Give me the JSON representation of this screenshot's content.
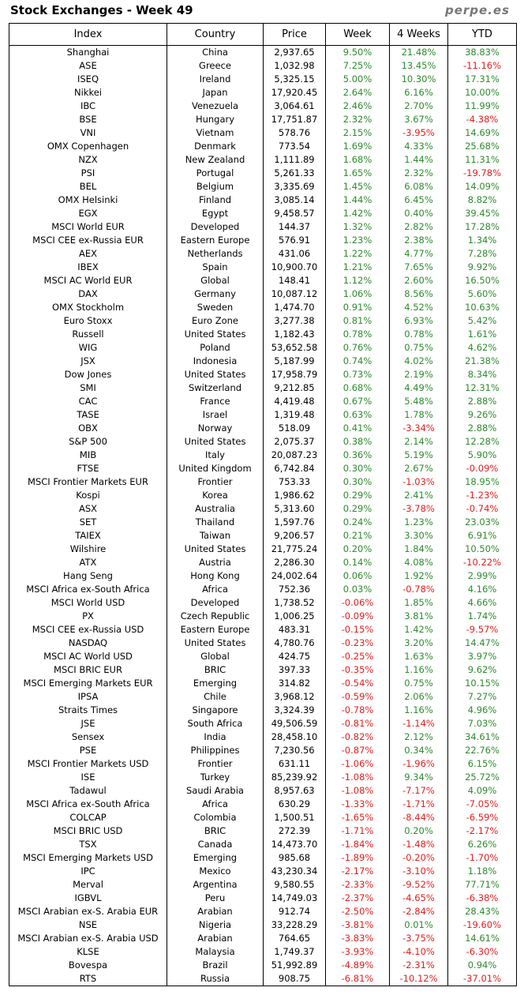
{
  "header": {
    "title": "Stock Exchanges - Week 49",
    "source": "perpe.es"
  },
  "table": {
    "columns": [
      "Index",
      "Country",
      "Price",
      "Week",
      "4 Weeks",
      "YTD"
    ],
    "rows": [
      [
        "Shanghai",
        "China",
        "2,937.65",
        "9.50%",
        "21.48%",
        "38.83%"
      ],
      [
        "ASE",
        "Greece",
        "1,032.98",
        "7.25%",
        "13.45%",
        "-11.16%"
      ],
      [
        "ISEQ",
        "Ireland",
        "5,325.15",
        "5.00%",
        "10.30%",
        "17.31%"
      ],
      [
        "Nikkei",
        "Japan",
        "17,920.45",
        "2.64%",
        "6.16%",
        "10.00%"
      ],
      [
        "IBC",
        "Venezuela",
        "3,064.61",
        "2.46%",
        "2.70%",
        "11.99%"
      ],
      [
        "BSE",
        "Hungary",
        "17,751.87",
        "2.32%",
        "3.67%",
        "-4.38%"
      ],
      [
        "VNI",
        "Vietnam",
        "578.76",
        "2.15%",
        "-3.95%",
        "14.69%"
      ],
      [
        "OMX Copenhagen",
        "Denmark",
        "773.54",
        "1.69%",
        "4.33%",
        "25.68%"
      ],
      [
        "NZX",
        "New Zealand",
        "1,111.89",
        "1.68%",
        "1.44%",
        "11.31%"
      ],
      [
        "PSI",
        "Portugal",
        "5,261.33",
        "1.65%",
        "2.32%",
        "-19.78%"
      ],
      [
        "BEL",
        "Belgium",
        "3,335.69",
        "1.45%",
        "6.08%",
        "14.09%"
      ],
      [
        "OMX Helsinki",
        "Finland",
        "3,085.14",
        "1.44%",
        "6.45%",
        "8.82%"
      ],
      [
        "EGX",
        "Egypt",
        "9,458.57",
        "1.42%",
        "0.40%",
        "39.45%"
      ],
      [
        "MSCI World EUR",
        "Developed",
        "144.37",
        "1.32%",
        "2.82%",
        "17.28%"
      ],
      [
        "MSCI CEE ex-Russia EUR",
        "Eastern Europe",
        "576.91",
        "1.23%",
        "2.38%",
        "1.34%"
      ],
      [
        "AEX",
        "Netherlands",
        "431.06",
        "1.22%",
        "4.77%",
        "7.28%"
      ],
      [
        "IBEX",
        "Spain",
        "10,900.70",
        "1.21%",
        "7.65%",
        "9.92%"
      ],
      [
        "MSCI AC World EUR",
        "Global",
        "148.41",
        "1.12%",
        "2.60%",
        "16.50%"
      ],
      [
        "DAX",
        "Germany",
        "10,087.12",
        "1.06%",
        "8.56%",
        "5.60%"
      ],
      [
        "OMX Stockholm",
        "Sweden",
        "1,474.70",
        "0.91%",
        "4.52%",
        "10.63%"
      ],
      [
        "Euro Stoxx",
        "Euro Zone",
        "3,277.38",
        "0.81%",
        "6.93%",
        "5.42%"
      ],
      [
        "Russell",
        "United States",
        "1,182.43",
        "0.78%",
        "0.78%",
        "1.61%"
      ],
      [
        "WIG",
        "Poland",
        "53,652.58",
        "0.76%",
        "0.75%",
        "4.62%"
      ],
      [
        "JSX",
        "Indonesia",
        "5,187.99",
        "0.74%",
        "4.02%",
        "21.38%"
      ],
      [
        "Dow Jones",
        "United States",
        "17,958.79",
        "0.73%",
        "2.19%",
        "8.34%"
      ],
      [
        "SMI",
        "Switzerland",
        "9,212.85",
        "0.68%",
        "4.49%",
        "12.31%"
      ],
      [
        "CAC",
        "France",
        "4,419.48",
        "0.67%",
        "5.48%",
        "2.88%"
      ],
      [
        "TASE",
        "Israel",
        "1,319.48",
        "0.63%",
        "1.78%",
        "9.26%"
      ],
      [
        "OBX",
        "Norway",
        "518.09",
        "0.41%",
        "-3.34%",
        "2.88%"
      ],
      [
        "S&P 500",
        "United States",
        "2,075.37",
        "0.38%",
        "2.14%",
        "12.28%"
      ],
      [
        "MIB",
        "Italy",
        "20,087.23",
        "0.36%",
        "5.19%",
        "5.90%"
      ],
      [
        "FTSE",
        "United Kingdom",
        "6,742.84",
        "0.30%",
        "2.67%",
        "-0.09%"
      ],
      [
        "MSCI Frontier Markets EUR",
        "Frontier",
        "753.33",
        "0.30%",
        "-1.03%",
        "18.95%"
      ],
      [
        "Kospi",
        "Korea",
        "1,986.62",
        "0.29%",
        "2.41%",
        "-1.23%"
      ],
      [
        "ASX",
        "Australia",
        "5,313.60",
        "0.29%",
        "-3.78%",
        "-0.74%"
      ],
      [
        "SET",
        "Thailand",
        "1,597.76",
        "0.24%",
        "1.23%",
        "23.03%"
      ],
      [
        "TAIEX",
        "Taiwan",
        "9,206.57",
        "0.21%",
        "3.30%",
        "6.91%"
      ],
      [
        "Wilshire",
        "United States",
        "21,775.24",
        "0.20%",
        "1.84%",
        "10.50%"
      ],
      [
        "ATX",
        "Austria",
        "2,286.30",
        "0.14%",
        "4.08%",
        "-10.22%"
      ],
      [
        "Hang Seng",
        "Hong Kong",
        "24,002.64",
        "0.06%",
        "1.92%",
        "2.99%"
      ],
      [
        "MSCI Africa ex-South Africa",
        "Africa",
        "752.36",
        "0.03%",
        "-0.78%",
        "4.16%"
      ],
      [
        "MSCI World USD",
        "Developed",
        "1,738.52",
        "-0.06%",
        "1.85%",
        "4.66%"
      ],
      [
        "PX",
        "Czech Republic",
        "1,006.25",
        "-0.09%",
        "3.81%",
        "1.74%"
      ],
      [
        "MSCI CEE ex-Russia USD",
        "Eastern Europe",
        "483.31",
        "-0.15%",
        "1.42%",
        "-9.57%"
      ],
      [
        "NASDAQ",
        "United States",
        "4,780.76",
        "-0.23%",
        "3.20%",
        "14.47%"
      ],
      [
        "MSCI AC World USD",
        "Global",
        "424.75",
        "-0.25%",
        "1.63%",
        "3.97%"
      ],
      [
        "MSCI BRIC EUR",
        "BRIC",
        "397.33",
        "-0.35%",
        "1.16%",
        "9.62%"
      ],
      [
        "MSCI Emerging Markets EUR",
        "Emerging",
        "314.82",
        "-0.54%",
        "0.75%",
        "10.15%"
      ],
      [
        "IPSA",
        "Chile",
        "3,968.12",
        "-0.59%",
        "2.06%",
        "7.27%"
      ],
      [
        "Straits Times",
        "Singapore",
        "3,324.39",
        "-0.78%",
        "1.16%",
        "4.96%"
      ],
      [
        "JSE",
        "South Africa",
        "49,506.59",
        "-0.81%",
        "-1.14%",
        "7.03%"
      ],
      [
        "Sensex",
        "India",
        "28,458.10",
        "-0.82%",
        "2.12%",
        "34.61%"
      ],
      [
        "PSE",
        "Philippines",
        "7,230.56",
        "-0.87%",
        "0.34%",
        "22.76%"
      ],
      [
        "MSCI Frontier Markets USD",
        "Frontier",
        "631.11",
        "-1.06%",
        "-1.96%",
        "6.15%"
      ],
      [
        "ISE",
        "Turkey",
        "85,239.92",
        "-1.08%",
        "9.34%",
        "25.72%"
      ],
      [
        "Tadawul",
        "Saudi Arabia",
        "8,957.63",
        "-1.08%",
        "-7.17%",
        "4.09%"
      ],
      [
        "MSCI Africa ex-South Africa",
        "Africa",
        "630.29",
        "-1.33%",
        "-1.71%",
        "-7.05%"
      ],
      [
        "COLCAP",
        "Colombia",
        "1,500.51",
        "-1.65%",
        "-8.44%",
        "-6.59%"
      ],
      [
        "MSCI BRIC USD",
        "BRIC",
        "272.39",
        "-1.71%",
        "0.20%",
        "-2.17%"
      ],
      [
        "TSX",
        "Canada",
        "14,473.70",
        "-1.84%",
        "-1.48%",
        "6.26%"
      ],
      [
        "MSCI Emerging Markets USD",
        "Emerging",
        "985.68",
        "-1.89%",
        "-0.20%",
        "-1.70%"
      ],
      [
        "IPC",
        "Mexico",
        "43,230.34",
        "-2.17%",
        "-3.10%",
        "1.18%"
      ],
      [
        "Merval",
        "Argentina",
        "9,580.55",
        "-2.33%",
        "-9.52%",
        "77.71%"
      ],
      [
        "IGBVL",
        "Peru",
        "14,749.03",
        "-2.37%",
        "-4.65%",
        "-6.38%"
      ],
      [
        "MSCI Arabian ex-S. Arabia EUR",
        "Arabian",
        "912.74",
        "-2.50%",
        "-2.84%",
        "28.43%"
      ],
      [
        "NSE",
        "Nigeria",
        "33,228.29",
        "-3.81%",
        "0.01%",
        "-19.60%"
      ],
      [
        "MSCI Arabian ex-S. Arabia USD",
        "Arabian",
        "764.65",
        "-3.83%",
        "-3.75%",
        "14.61%"
      ],
      [
        "KLSE",
        "Malaysia",
        "1,749.37",
        "-3.93%",
        "-4.10%",
        "-6.30%"
      ],
      [
        "Bovespa",
        "Brazil",
        "51,992.89",
        "-4.89%",
        "-2.31%",
        "0.94%"
      ],
      [
        "RTS",
        "Russia",
        "908.75",
        "-6.81%",
        "-10.12%",
        "-37.01%"
      ]
    ]
  }
}
